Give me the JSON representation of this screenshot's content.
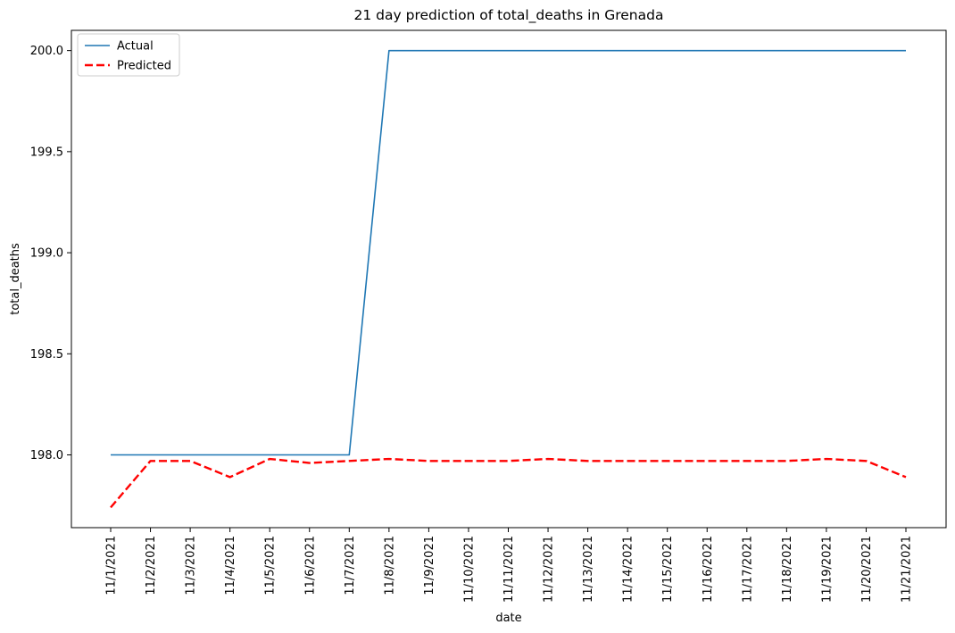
{
  "chart_data": {
    "type": "line",
    "title": "21 day prediction of total_deaths in Grenada",
    "xlabel": "date",
    "ylabel": "total_deaths",
    "categories": [
      "11/1/2021",
      "11/2/2021",
      "11/3/2021",
      "11/4/2021",
      "11/5/2021",
      "11/6/2021",
      "11/7/2021",
      "11/8/2021",
      "11/9/2021",
      "11/10/2021",
      "11/11/2021",
      "11/12/2021",
      "11/13/2021",
      "11/14/2021",
      "11/15/2021",
      "11/16/2021",
      "11/17/2021",
      "11/18/2021",
      "11/19/2021",
      "11/20/2021",
      "11/21/2021"
    ],
    "yticks": [
      "198.0",
      "198.5",
      "199.0",
      "199.5",
      "200.0"
    ],
    "ylim": [
      197.64,
      200.1
    ],
    "grid": false,
    "legend_position": "top-left",
    "series": [
      {
        "name": "Actual",
        "color": "#1f77b4",
        "style": "solid",
        "values": [
          198,
          198,
          198,
          198,
          198,
          198,
          198,
          200,
          200,
          200,
          200,
          200,
          200,
          200,
          200,
          200,
          200,
          200,
          200,
          200,
          200
        ]
      },
      {
        "name": "Predicted",
        "color": "#ff0000",
        "style": "dashed",
        "values": [
          197.74,
          197.97,
          197.97,
          197.89,
          197.98,
          197.96,
          197.97,
          197.98,
          197.97,
          197.97,
          197.97,
          197.98,
          197.97,
          197.97,
          197.97,
          197.97,
          197.97,
          197.97,
          197.98,
          197.97,
          197.89
        ]
      }
    ]
  }
}
